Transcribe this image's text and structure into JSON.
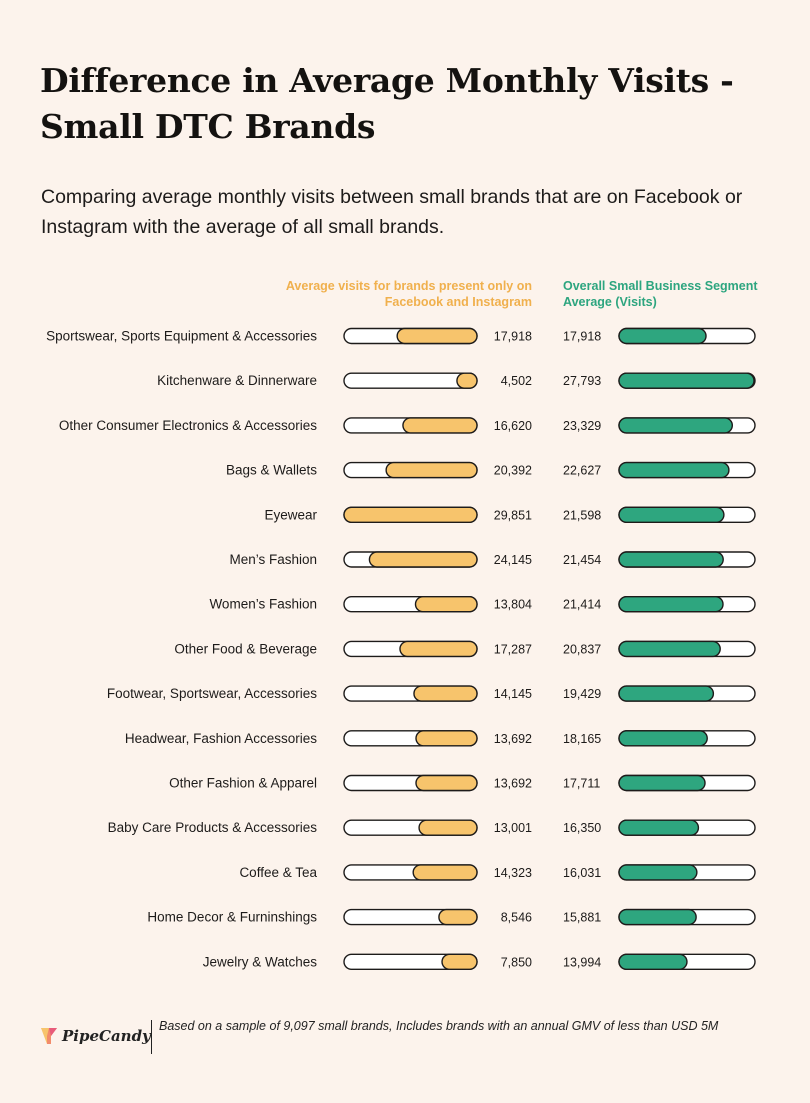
{
  "title": "Difference in Average Monthly Visits - Small DTC Brands",
  "subtitle": "Comparing average monthly visits between small brands that are on Facebook or Instagram with the average of all small brands.",
  "logo": {
    "text": "PipeCandy"
  },
  "footnote": "Based on a sample of 9,097 small brands, Includes brands with an annual GMV of less than USD 5M",
  "colors": {
    "facebook": "#f7c46c",
    "overall": "#2ea67f",
    "outline": "#1d1b1a",
    "background": "#fcf3ec"
  },
  "chart_data": {
    "type": "bar",
    "orientation": "horizontal",
    "title": "Difference in Average Monthly Visits - Small DTC Brands",
    "categories": [
      "Sportswear, Sports Equipment & Accessories",
      "Kitchenware & Dinnerware",
      "Other Consumer Electronics & Accessories",
      "Bags & Wallets",
      "Eyewear",
      "Men’s Fashion",
      "Women’s Fashion",
      "Other Food & Beverage",
      "Footwear, Sportswear, Accessories",
      "Headwear, Fashion Accessories",
      "Other Fashion & Apparel",
      "Baby Care Products & Accessories",
      "Coffee & Tea",
      "Home Decor & Furninshings",
      "Jewelry & Watches"
    ],
    "series": [
      {
        "name": "Average visits for brands present only on Facebook and Instagram",
        "values": [
          17918,
          4502,
          16620,
          20392,
          29851,
          24145,
          13804,
          17287,
          14145,
          13692,
          13692,
          13001,
          14323,
          8546,
          7850
        ],
        "labels": [
          "17,918",
          "4,502",
          "16,620",
          "20,392",
          "29,851",
          "24,145",
          "13,804",
          "17,287",
          "14,145",
          "13,692",
          "13,692",
          "13,001",
          "14,323",
          "8,546",
          "7,850"
        ],
        "bar_direction": "right-to-left",
        "xlim": [
          0,
          29851
        ]
      },
      {
        "name": "Overall Small Business Segment Average (Visits)",
        "values": [
          17918,
          27793,
          23329,
          22627,
          21598,
          21454,
          21414,
          20837,
          19429,
          18165,
          17711,
          16350,
          16031,
          15881,
          13994
        ],
        "labels": [
          "17,918",
          "27,793",
          "23,329",
          "22,627",
          "21,598",
          "21,454",
          "21,414",
          "20,837",
          "19,429",
          "18,165",
          "17,711",
          "16,350",
          "16,031",
          "15,881",
          "13,994"
        ],
        "bar_direction": "left-to-right",
        "xlim": [
          0,
          28000
        ]
      }
    ],
    "legend": "top",
    "grid": false
  }
}
